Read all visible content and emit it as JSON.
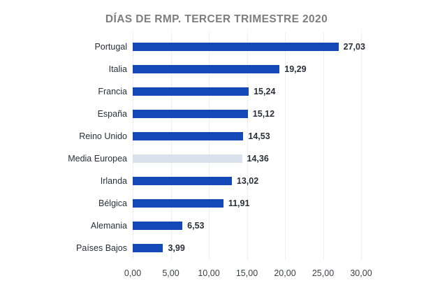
{
  "chart_data": {
    "type": "bar",
    "orientation": "horizontal",
    "title": "DÍAS DE RMP. TERCER TRIMESTRE 2020",
    "categories": [
      "Portugal",
      "Italia",
      "Francia",
      "España",
      "Reino Unido",
      "Media Europea",
      "Irlanda",
      "Bélgica",
      "Alemania",
      "Países Bajos"
    ],
    "values": [
      27.03,
      19.29,
      15.24,
      15.12,
      14.53,
      14.36,
      13.02,
      11.91,
      6.53,
      3.99
    ],
    "value_labels": [
      "27,03",
      "19,29",
      "15,24",
      "15,12",
      "14,53",
      "14,36",
      "13,02",
      "11,91",
      "6,53",
      "3,99"
    ],
    "highlight_index": 5,
    "xlabel": "",
    "ylabel": "",
    "xlim": [
      0,
      30
    ],
    "x_ticks": [
      0,
      5,
      10,
      15,
      20,
      25,
      30
    ],
    "x_tick_labels": [
      "0,00",
      "5,00",
      "10,00",
      "15,00",
      "20,00",
      "25,00",
      "30,00"
    ],
    "grid": "vertical-only",
    "legend": "none",
    "colors": {
      "bar": "#1447b8",
      "highlight_bar": "#d9e1ec",
      "gridline": "#edf0f3",
      "title_text": "#7d7d7d",
      "label_text": "#2b2f38",
      "axis_text": "#3c4049",
      "background": "#ffffff"
    }
  }
}
